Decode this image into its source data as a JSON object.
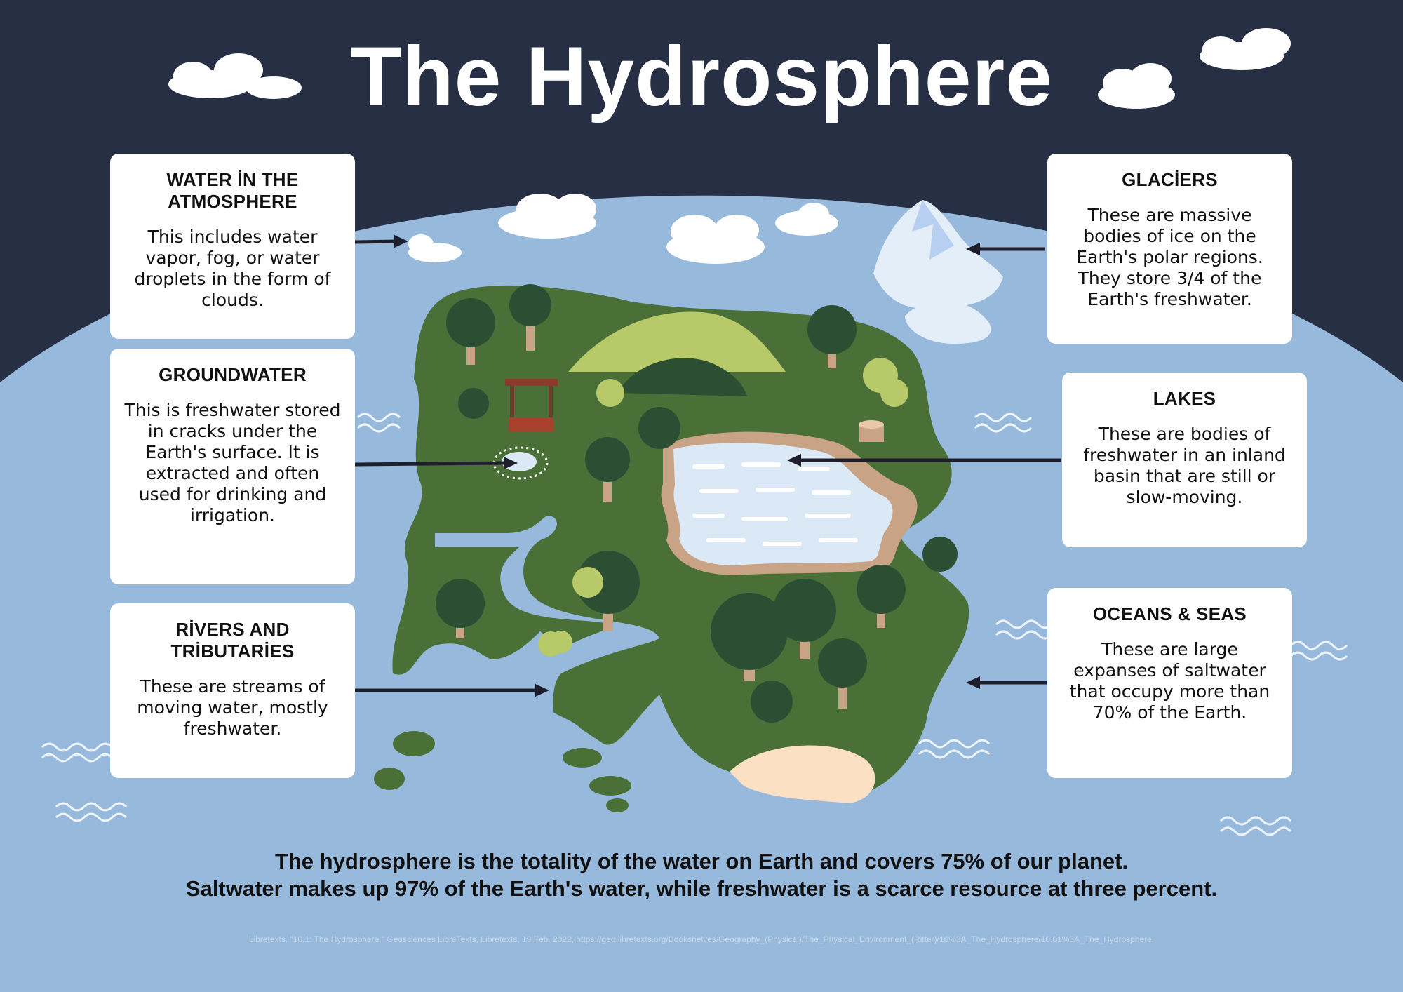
{
  "title": "The Hydrosphere",
  "cards": {
    "atmosphere": {
      "heading": "WATER İN THE ATMOSPHERE",
      "body": "This includes water vapor, fog, or water droplets in the form of clouds."
    },
    "groundwater": {
      "heading": "GROUNDWATER",
      "body": "This is freshwater stored in cracks under the Earth's surface. It is extracted and often used for drinking and irrigation."
    },
    "rivers": {
      "heading": "RİVERS AND TRİBUTARİES",
      "body": "These are streams of moving water, mostly freshwater."
    },
    "glaciers": {
      "heading": "GLACİERS",
      "body": "These are massive bodies of ice on the Earth's polar regions. They store 3/4 of the Earth's freshwater."
    },
    "lakes": {
      "heading": "LAKES",
      "body": "These are bodies of freshwater in an inland basin that are still or slow-moving."
    },
    "oceans": {
      "heading": "OCEANS & SEAS",
      "body": "These are large expanses of saltwater that occupy more than 70% of the Earth."
    }
  },
  "summary": {
    "line1": "The hydrosphere is the totality of the water on Earth and covers 75% of our planet.",
    "line2": "Saltwater makes up 97% of the Earth's water, while freshwater is a scarce resource at three percent."
  },
  "citation": "Libretexts. \"10.1: The Hydrosphere.\" Geosciences LibreTexts, Libretexts, 19 Feb. 2022, https://geo.libretexts.org/Bookshelves/Geography_(Physical)/The_Physical_Environment_(Ritter)/10%3A_The_Hydrosphere/10.01%3A_The_Hydrosphere.",
  "colors": {
    "sky": "#262f44",
    "ocean": "#97b9dc",
    "land": "#4a7038",
    "tree_dark": "#2c4f34",
    "tree_light": "#b8c96a",
    "lake": "#dbe8f6",
    "shore": "#c8a386",
    "sand": "#fce0c4",
    "arrow": "#1e1e2c"
  },
  "icons": [
    "cloud-icon",
    "glacier-icon",
    "well-icon",
    "tree-icon",
    "wave-icon",
    "arrow-icon"
  ]
}
